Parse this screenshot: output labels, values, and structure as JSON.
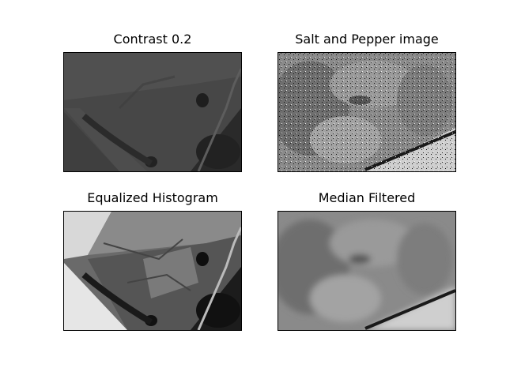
{
  "figure": {
    "panels": [
      {
        "id": "contrast",
        "title": "Contrast 0.2"
      },
      {
        "id": "salt-pepper",
        "title": "Salt and Pepper image"
      },
      {
        "id": "equalized",
        "title": "Equalized Histogram"
      },
      {
        "id": "median",
        "title": "Median Filtered"
      }
    ]
  },
  "colors": {
    "background": "#ffffff",
    "axes_border": "#000000",
    "title_text": "#000000"
  }
}
